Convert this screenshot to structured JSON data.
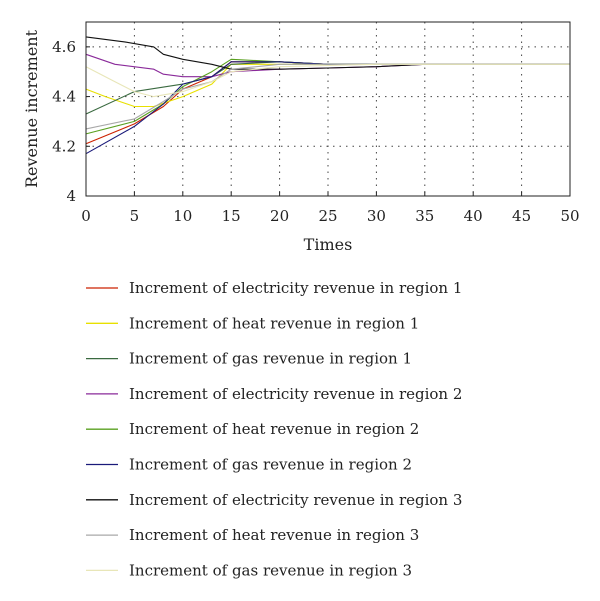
{
  "chart_data": {
    "type": "line",
    "xlabel": "Times",
    "ylabel": "Revenue increment",
    "xlim": [
      0,
      50
    ],
    "ylim": [
      4,
      4.7
    ],
    "xticks": [
      0,
      5,
      10,
      15,
      20,
      25,
      30,
      35,
      40,
      45,
      50
    ],
    "yticks": [
      4,
      4.2,
      4.4,
      4.6
    ],
    "ytick_labels": [
      "4",
      "4.2",
      "4.4",
      "4.6"
    ],
    "grid": "dotted",
    "legend_position": "below",
    "series": [
      {
        "name": "Increment of electricity revenue in region 1",
        "color": "#cc2200",
        "x": [
          0,
          5,
          8,
          10,
          13,
          15,
          20,
          25,
          30,
          35,
          40,
          45,
          50
        ],
        "y": [
          4.21,
          4.29,
          4.36,
          4.43,
          4.48,
          4.54,
          4.54,
          4.53,
          4.53,
          4.53,
          4.53,
          4.53,
          4.53
        ]
      },
      {
        "name": "Increment of heat revenue in region 1",
        "color": "#e8e000",
        "x": [
          0,
          2,
          5,
          7,
          10,
          13,
          15,
          20,
          25,
          30,
          35,
          40,
          45,
          50
        ],
        "y": [
          4.43,
          4.4,
          4.36,
          4.36,
          4.4,
          4.45,
          4.53,
          4.53,
          4.53,
          4.53,
          4.53,
          4.53,
          4.53,
          4.53
        ]
      },
      {
        "name": "Increment of gas revenue in region 1",
        "color": "#3a6a40",
        "x": [
          0,
          5,
          10,
          13,
          15,
          20,
          25,
          30,
          35,
          40,
          45,
          50
        ],
        "y": [
          4.33,
          4.42,
          4.45,
          4.48,
          4.53,
          4.54,
          4.53,
          4.53,
          4.53,
          4.53,
          4.53,
          4.53
        ]
      },
      {
        "name": "Increment of electricity revenue in region 2",
        "color": "#8a2a9a",
        "x": [
          0,
          3,
          7,
          8,
          10,
          13,
          15,
          20,
          25,
          30,
          35,
          40,
          45,
          50
        ],
        "y": [
          4.57,
          4.53,
          4.51,
          4.49,
          4.48,
          4.48,
          4.5,
          4.51,
          4.515,
          4.52,
          4.53,
          4.53,
          4.53,
          4.53
        ]
      },
      {
        "name": "Increment of heat revenue in region 2",
        "color": "#5aa020",
        "x": [
          0,
          5,
          8,
          10,
          13,
          15,
          20,
          25,
          30,
          35,
          40,
          45,
          50
        ],
        "y": [
          4.25,
          4.3,
          4.37,
          4.44,
          4.5,
          4.55,
          4.54,
          4.53,
          4.53,
          4.53,
          4.53,
          4.53,
          4.53
        ]
      },
      {
        "name": "Increment of gas revenue in region 2",
        "color": "#1a1a7a",
        "x": [
          0,
          5,
          8,
          10,
          13,
          15,
          20,
          25,
          30,
          35,
          40,
          45,
          50
        ],
        "y": [
          4.17,
          4.28,
          4.37,
          4.45,
          4.48,
          4.54,
          4.54,
          4.53,
          4.53,
          4.53,
          4.53,
          4.53,
          4.53
        ]
      },
      {
        "name": "Increment of electricity revenue in region 3",
        "color": "#111111",
        "x": [
          0,
          4,
          7,
          8,
          10,
          13,
          15,
          20,
          25,
          30,
          35,
          40,
          45,
          50
        ],
        "y": [
          4.64,
          4.62,
          4.6,
          4.57,
          4.55,
          4.53,
          4.51,
          4.51,
          4.515,
          4.52,
          4.53,
          4.53,
          4.53,
          4.53
        ]
      },
      {
        "name": "Increment of heat revenue in region 3",
        "color": "#a8a8a8",
        "x": [
          0,
          5,
          8,
          10,
          13,
          15,
          20,
          25,
          30,
          35,
          40,
          45,
          50
        ],
        "y": [
          4.27,
          4.31,
          4.38,
          4.43,
          4.46,
          4.51,
          4.53,
          4.53,
          4.53,
          4.53,
          4.53,
          4.53,
          4.53
        ]
      },
      {
        "name": "Increment of gas revenue in region 3",
        "color": "#e8e6b8",
        "x": [
          0,
          3,
          5,
          7,
          10,
          13,
          15,
          20,
          25,
          30,
          35,
          40,
          45,
          50
        ],
        "y": [
          4.52,
          4.46,
          4.42,
          4.4,
          4.42,
          4.46,
          4.5,
          4.52,
          4.525,
          4.53,
          4.53,
          4.53,
          4.53,
          4.53
        ]
      }
    ]
  }
}
